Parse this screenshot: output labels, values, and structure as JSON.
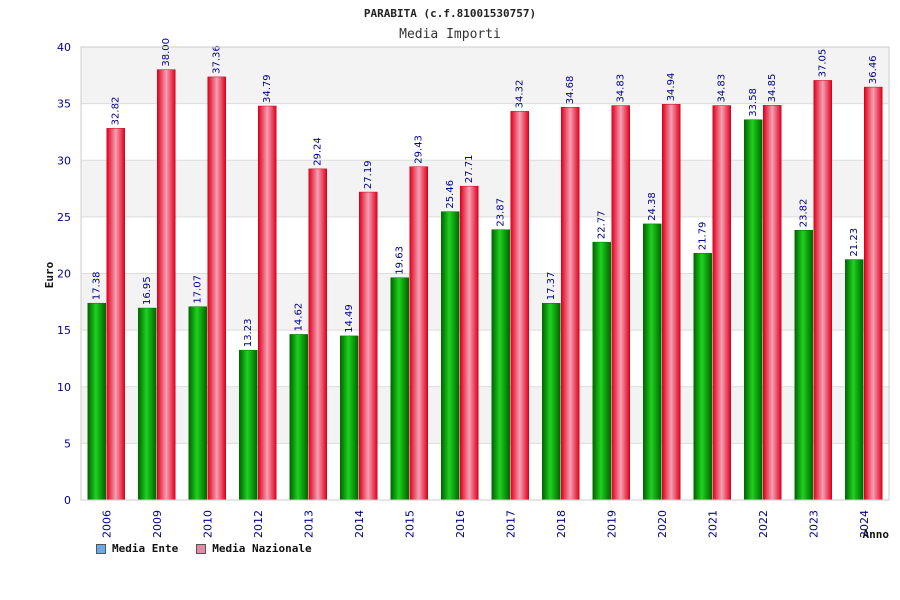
{
  "chart_data": {
    "type": "bar",
    "title": "PARABITA (c.f.81001530757)",
    "subtitle": "Media Importi",
    "xlabel": "Anno",
    "ylabel": "Euro",
    "ylim": [
      0,
      40
    ],
    "yticks": [
      0,
      5,
      10,
      15,
      20,
      25,
      30,
      35,
      40
    ],
    "grid": true,
    "legend_position": "bottom-left",
    "categories": [
      "2006",
      "2009",
      "2010",
      "2012",
      "2013",
      "2014",
      "2015",
      "2016",
      "2017",
      "2018",
      "2019",
      "2020",
      "2021",
      "2022",
      "2023",
      "2024"
    ],
    "series": [
      {
        "name": "Media Ente",
        "color": "#00b400",
        "legend_color": "#6aa8e8",
        "values": [
          17.38,
          16.95,
          17.07,
          13.23,
          14.62,
          14.49,
          19.63,
          25.46,
          23.87,
          17.37,
          22.77,
          24.38,
          21.79,
          33.58,
          23.82,
          21.23
        ]
      },
      {
        "name": "Media Nazionale",
        "color": "#e8001c",
        "legend_color": "#e08aa6",
        "values": [
          32.82,
          38.0,
          37.36,
          34.79,
          29.24,
          27.19,
          29.43,
          27.71,
          34.32,
          34.68,
          34.83,
          34.94,
          34.83,
          34.85,
          37.05,
          36.46
        ]
      }
    ],
    "data_labels": [
      [
        "17.38",
        "16.95",
        "17.07",
        "13.23",
        "14.62",
        "14.49",
        "19.63",
        "25.46",
        "23.87",
        "17.37",
        "22.77",
        "24.38",
        "21.79",
        "33.58",
        "23.82",
        "21.23"
      ],
      [
        "32.82",
        "38.00",
        "37.36",
        "34.79",
        "29.24",
        "27.19",
        "29.43",
        "27.71",
        "34.32",
        "34.68",
        "34.83",
        "34.94",
        "34.83",
        "34.85",
        "37.05",
        "36.46"
      ]
    ]
  }
}
